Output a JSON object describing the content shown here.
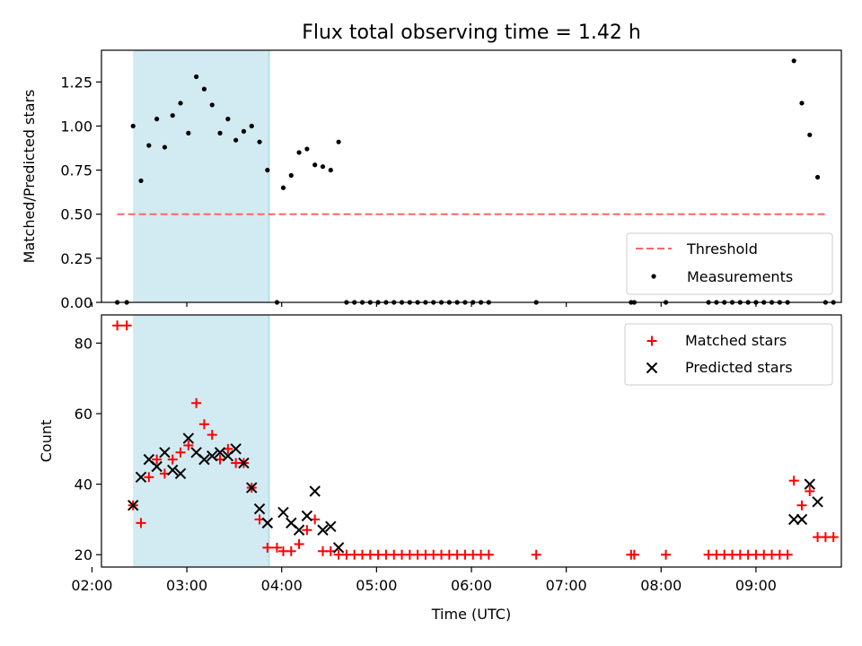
{
  "chart_data": [
    {
      "type": "scatter",
      "title": "Flux total observing time = 1.42 h",
      "xlabel": "",
      "ylabel": "Matched/Predicted stars",
      "ylim": [
        0,
        1.43
      ],
      "yticks": [
        "0.00",
        "0.25",
        "0.50",
        "0.75",
        "1.00",
        "1.25"
      ],
      "ytick_values": [
        0,
        0.25,
        0.5,
        0.75,
        1.0,
        1.25
      ],
      "x_axis_format": "HH:MM (UTC)",
      "xlim": [
        "02:06",
        "09:54"
      ],
      "shaded_interval": {
        "start": "02:26",
        "end": "03:52",
        "color": "#add8e6"
      },
      "legend_location": "lower-right",
      "series": [
        {
          "name": "Threshold",
          "style": "dashed-line",
          "color": "#ff6666",
          "x": [
            "02:16",
            "09:44"
          ],
          "y": [
            0.5,
            0.5
          ]
        },
        {
          "name": "Measurements",
          "style": "dot",
          "color": "#000000",
          "points": [
            [
              "02:16",
              0
            ],
            [
              "02:22",
              0
            ],
            [
              "02:26",
              1.0
            ],
            [
              "02:31",
              0.69
            ],
            [
              "02:36",
              0.89
            ],
            [
              "02:41",
              1.04
            ],
            [
              "02:46",
              0.88
            ],
            [
              "02:51",
              1.06
            ],
            [
              "02:56",
              1.13
            ],
            [
              "03:01",
              0.96
            ],
            [
              "03:06",
              1.28
            ],
            [
              "03:11",
              1.21
            ],
            [
              "03:16",
              1.12
            ],
            [
              "03:21",
              0.96
            ],
            [
              "03:26",
              1.04
            ],
            [
              "03:31",
              0.92
            ],
            [
              "03:36",
              0.97
            ],
            [
              "03:41",
              1.0
            ],
            [
              "03:46",
              0.91
            ],
            [
              "03:51",
              0.75
            ],
            [
              "03:57",
              0
            ],
            [
              "04:01",
              0.65
            ],
            [
              "04:06",
              0.72
            ],
            [
              "04:11",
              0.85
            ],
            [
              "04:16",
              0.87
            ],
            [
              "04:21",
              0.78
            ],
            [
              "04:26",
              0.77
            ],
            [
              "04:31",
              0.75
            ],
            [
              "04:36",
              0.91
            ],
            [
              "04:41",
              0
            ],
            [
              "04:46",
              0
            ],
            [
              "04:51",
              0
            ],
            [
              "04:56",
              0
            ],
            [
              "05:01",
              0
            ],
            [
              "05:06",
              0
            ],
            [
              "05:11",
              0
            ],
            [
              "05:16",
              0
            ],
            [
              "05:21",
              0
            ],
            [
              "05:26",
              0
            ],
            [
              "05:31",
              0
            ],
            [
              "05:36",
              0
            ],
            [
              "05:41",
              0
            ],
            [
              "05:46",
              0
            ],
            [
              "05:51",
              0
            ],
            [
              "05:56",
              0
            ],
            [
              "06:01",
              0
            ],
            [
              "06:06",
              0
            ],
            [
              "06:11",
              0
            ],
            [
              "06:41",
              0
            ],
            [
              "07:41",
              0
            ],
            [
              "07:43",
              0
            ],
            [
              "08:03",
              0
            ],
            [
              "08:30",
              0
            ],
            [
              "08:35",
              0
            ],
            [
              "08:40",
              0
            ],
            [
              "08:45",
              0
            ],
            [
              "08:50",
              0
            ],
            [
              "08:55",
              0
            ],
            [
              "09:00",
              0
            ],
            [
              "09:05",
              0
            ],
            [
              "09:10",
              0
            ],
            [
              "09:15",
              0
            ],
            [
              "09:20",
              0
            ],
            [
              "09:24",
              1.37
            ],
            [
              "09:29",
              1.13
            ],
            [
              "09:34",
              0.95
            ],
            [
              "09:39",
              0.71
            ],
            [
              "09:44",
              0
            ],
            [
              "09:49",
              0
            ]
          ]
        }
      ]
    },
    {
      "type": "scatter",
      "title": "",
      "xlabel": "Time (UTC)",
      "ylabel": "Count",
      "ylim": [
        16.5,
        88
      ],
      "yticks": [
        "20",
        "40",
        "60",
        "80"
      ],
      "ytick_values": [
        20,
        40,
        60,
        80
      ],
      "xticks": [
        "02:00",
        "03:00",
        "04:00",
        "05:00",
        "06:00",
        "07:00",
        "08:00",
        "09:00"
      ],
      "xlim": [
        "02:06",
        "09:54"
      ],
      "shaded_interval": {
        "start": "02:26",
        "end": "03:52",
        "color": "#add8e6"
      },
      "legend_location": "upper-right",
      "series": [
        {
          "name": "Matched stars",
          "marker": "plus",
          "color": "#ff0000",
          "points": [
            [
              "02:16",
              85
            ],
            [
              "02:22",
              85
            ],
            [
              "02:26",
              34
            ],
            [
              "02:31",
              29
            ],
            [
              "02:36",
              42
            ],
            [
              "02:41",
              47
            ],
            [
              "02:46",
              43
            ],
            [
              "02:51",
              47
            ],
            [
              "02:56",
              49
            ],
            [
              "03:01",
              51
            ],
            [
              "03:06",
              63
            ],
            [
              "03:11",
              57
            ],
            [
              "03:16",
              54
            ],
            [
              "03:21",
              47
            ],
            [
              "03:26",
              50
            ],
            [
              "03:31",
              46
            ],
            [
              "03:36",
              46
            ],
            [
              "03:41",
              39
            ],
            [
              "03:46",
              30
            ],
            [
              "03:51",
              22
            ],
            [
              "03:57",
              22
            ],
            [
              "04:01",
              21
            ],
            [
              "04:06",
              21
            ],
            [
              "04:11",
              23
            ],
            [
              "04:16",
              27
            ],
            [
              "04:21",
              30
            ],
            [
              "04:26",
              21
            ],
            [
              "04:31",
              21
            ],
            [
              "04:36",
              20
            ],
            [
              "04:41",
              20
            ],
            [
              "04:46",
              20
            ],
            [
              "04:51",
              20
            ],
            [
              "04:56",
              20
            ],
            [
              "05:01",
              20
            ],
            [
              "05:06",
              20
            ],
            [
              "05:11",
              20
            ],
            [
              "05:16",
              20
            ],
            [
              "05:21",
              20
            ],
            [
              "05:26",
              20
            ],
            [
              "05:31",
              20
            ],
            [
              "05:36",
              20
            ],
            [
              "05:41",
              20
            ],
            [
              "05:46",
              20
            ],
            [
              "05:51",
              20
            ],
            [
              "05:56",
              20
            ],
            [
              "06:01",
              20
            ],
            [
              "06:06",
              20
            ],
            [
              "06:11",
              20
            ],
            [
              "06:41",
              20
            ],
            [
              "07:41",
              20
            ],
            [
              "07:43",
              20
            ],
            [
              "08:03",
              20
            ],
            [
              "08:30",
              20
            ],
            [
              "08:35",
              20
            ],
            [
              "08:40",
              20
            ],
            [
              "08:45",
              20
            ],
            [
              "08:50",
              20
            ],
            [
              "08:55",
              20
            ],
            [
              "09:00",
              20
            ],
            [
              "09:05",
              20
            ],
            [
              "09:10",
              20
            ],
            [
              "09:15",
              20
            ],
            [
              "09:20",
              20
            ],
            [
              "09:24",
              41
            ],
            [
              "09:29",
              34
            ],
            [
              "09:34",
              38
            ],
            [
              "09:39",
              25
            ],
            [
              "09:44",
              25
            ],
            [
              "09:49",
              25
            ]
          ]
        },
        {
          "name": "Predicted stars",
          "marker": "x",
          "color": "#000000",
          "points": [
            [
              "02:26",
              34
            ],
            [
              "02:31",
              42
            ],
            [
              "02:36",
              47
            ],
            [
              "02:41",
              45
            ],
            [
              "02:46",
              49
            ],
            [
              "02:51",
              44
            ],
            [
              "02:56",
              43
            ],
            [
              "03:01",
              53
            ],
            [
              "03:06",
              49
            ],
            [
              "03:11",
              47
            ],
            [
              "03:16",
              48
            ],
            [
              "03:21",
              49
            ],
            [
              "03:26",
              48
            ],
            [
              "03:31",
              50
            ],
            [
              "03:36",
              46
            ],
            [
              "03:41",
              39
            ],
            [
              "03:46",
              33
            ],
            [
              "03:51",
              29
            ],
            [
              "04:01",
              32
            ],
            [
              "04:06",
              29
            ],
            [
              "04:11",
              27
            ],
            [
              "04:16",
              31
            ],
            [
              "04:21",
              38
            ],
            [
              "04:26",
              27
            ],
            [
              "04:31",
              28
            ],
            [
              "04:36",
              22
            ],
            [
              "09:24",
              30
            ],
            [
              "09:29",
              30
            ],
            [
              "09:34",
              40
            ],
            [
              "09:39",
              35
            ]
          ]
        }
      ]
    }
  ]
}
